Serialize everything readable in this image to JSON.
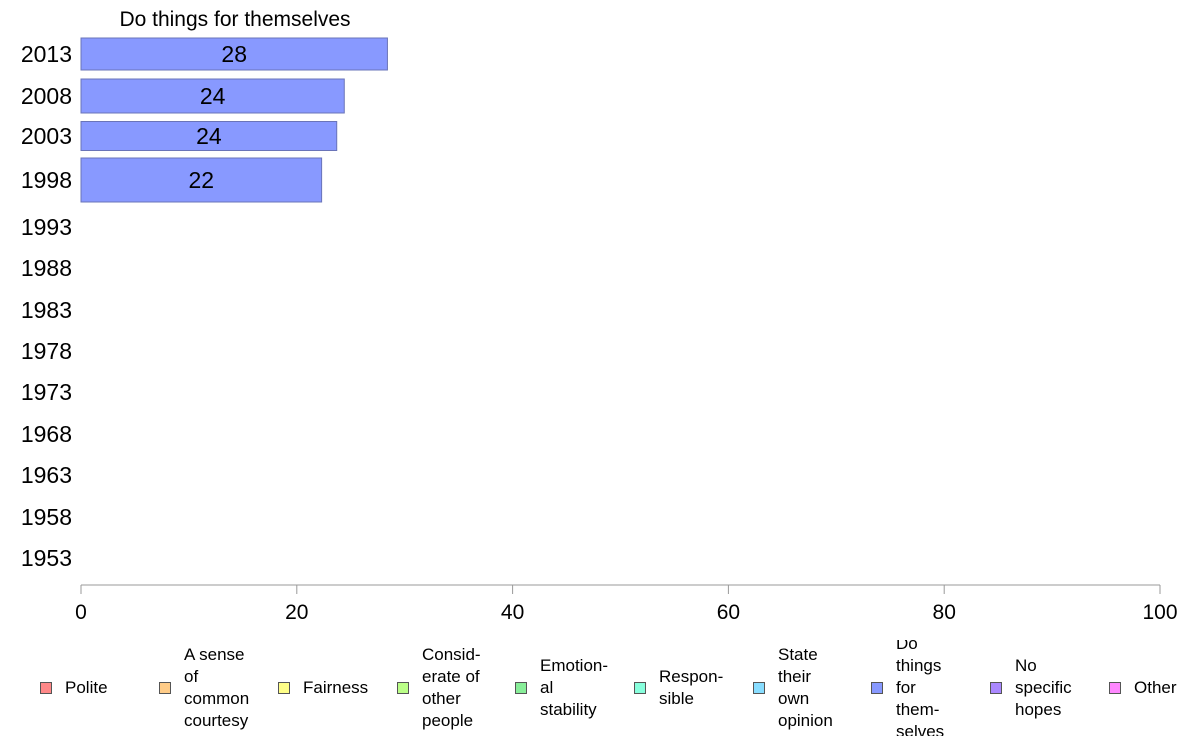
{
  "chart_data": {
    "type": "bar",
    "orientation": "horizontal",
    "title": "Do things for themselves",
    "categories": [
      "2013",
      "2008",
      "2003",
      "1998",
      "1993",
      "1988",
      "1983",
      "1978",
      "1973",
      "1968",
      "1963",
      "1958",
      "1953"
    ],
    "values": [
      28.4,
      24.4,
      23.7,
      22.3,
      null,
      null,
      null,
      null,
      null,
      null,
      null,
      null,
      null
    ],
    "data_labels": [
      "28",
      "24",
      "24",
      "22",
      "",
      "",
      "",
      "",
      "",
      "",
      "",
      "",
      ""
    ],
    "xlim": [
      0,
      100
    ],
    "xticks": [
      0,
      20,
      40,
      60,
      80,
      100
    ],
    "bar_color": "#8899ff",
    "legend_position": "bottom",
    "legend": [
      {
        "label": "Polite",
        "color": "#ff8888"
      },
      {
        "label": "A sense\nof\ncommon\ncourtesy",
        "color": "#ffcc88"
      },
      {
        "label": "Fairness",
        "color": "#ffff88"
      },
      {
        "label": "Consid-\nerate of\nother\npeople",
        "color": "#bbff88"
      },
      {
        "label": "Emotion-\nal\nstability",
        "color": "#88ee99"
      },
      {
        "label": "Respon-\nsible",
        "color": "#88ffdd"
      },
      {
        "label": "State\ntheir\nown\nopinion",
        "color": "#88ddff"
      },
      {
        "label": "Do\nthings\nfor\nthem-\nselves",
        "color": "#8899ff"
      },
      {
        "label": "No\nspecific\nhopes",
        "color": "#aa88ff"
      },
      {
        "label": "Other",
        "color": "#ff88ff"
      }
    ]
  }
}
